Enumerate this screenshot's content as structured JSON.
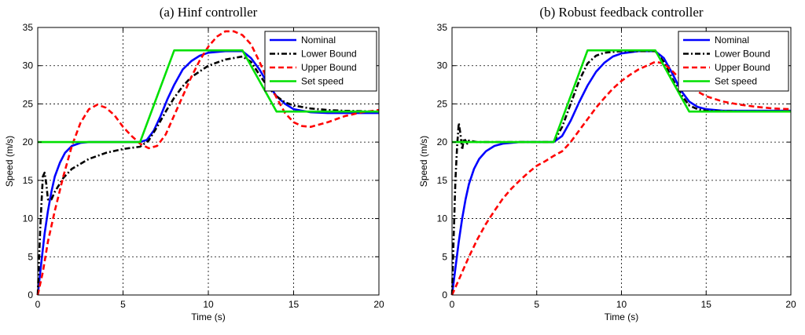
{
  "chart_data": [
    {
      "type": "line",
      "title": "(a) Hinf controller",
      "xlabel": "Time (s)",
      "ylabel": "Speed (m/s)",
      "xlim": [
        0,
        20
      ],
      "ylim": [
        0,
        35
      ],
      "xticks": [
        0,
        5,
        10,
        15,
        20
      ],
      "yticks": [
        0,
        5,
        10,
        15,
        20,
        25,
        30,
        35
      ],
      "grid": true,
      "legend_position": "top-right",
      "series": [
        {
          "name": "Nominal",
          "color": "#0000ff",
          "style": "solid",
          "points": [
            [
              0,
              0
            ],
            [
              0.2,
              4
            ],
            [
              0.4,
              8
            ],
            [
              0.6,
              11
            ],
            [
              0.8,
              13.5
            ],
            [
              1,
              15.5
            ],
            [
              1.3,
              17.3
            ],
            [
              1.6,
              18.6
            ],
            [
              2,
              19.5
            ],
            [
              2.5,
              19.9
            ],
            [
              3,
              20
            ],
            [
              4,
              20
            ],
            [
              5,
              20
            ],
            [
              5.5,
              20
            ],
            [
              6,
              20
            ],
            [
              6.4,
              20.3
            ],
            [
              6.8,
              21.5
            ],
            [
              7.2,
              23.4
            ],
            [
              7.6,
              25.6
            ],
            [
              8,
              27.5
            ],
            [
              8.5,
              29.5
            ],
            [
              9,
              30.6
            ],
            [
              9.5,
              31.3
            ],
            [
              10,
              31.7
            ],
            [
              11,
              31.9
            ],
            [
              12,
              31.9
            ],
            [
              12.5,
              31
            ],
            [
              13,
              29.5
            ],
            [
              13.5,
              27.6
            ],
            [
              14,
              26
            ],
            [
              14.5,
              25
            ],
            [
              15,
              24.3
            ],
            [
              16,
              23.9
            ],
            [
              17,
              23.8
            ],
            [
              18,
              23.8
            ],
            [
              19,
              23.8
            ],
            [
              20,
              23.8
            ]
          ]
        },
        {
          "name": "Lower Bound",
          "color": "#000000",
          "style": "dashdot",
          "points": [
            [
              0,
              0
            ],
            [
              0.15,
              9
            ],
            [
              0.3,
              15.5
            ],
            [
              0.4,
              16
            ],
            [
              0.5,
              14.5
            ],
            [
              0.6,
              12.5
            ],
            [
              0.8,
              12.5
            ],
            [
              1,
              13.5
            ],
            [
              1.5,
              15.3
            ],
            [
              2,
              16.5
            ],
            [
              3,
              17.8
            ],
            [
              4,
              18.6
            ],
            [
              5,
              19.1
            ],
            [
              6,
              19.4
            ],
            [
              6.5,
              20.2
            ],
            [
              7,
              22
            ],
            [
              7.5,
              24
            ],
            [
              8,
              25.8
            ],
            [
              8.5,
              27.3
            ],
            [
              9,
              28.5
            ],
            [
              10,
              30
            ],
            [
              11,
              30.8
            ],
            [
              12,
              31.2
            ],
            [
              12.5,
              30.5
            ],
            [
              13,
              28.8
            ],
            [
              13.5,
              27.2
            ],
            [
              14,
              26
            ],
            [
              14.5,
              25.2
            ],
            [
              15,
              24.8
            ],
            [
              16,
              24.4
            ],
            [
              17,
              24.2
            ],
            [
              18,
              24.1
            ],
            [
              20,
              24
            ]
          ]
        },
        {
          "name": "Upper Bound",
          "color": "#ff0000",
          "style": "dashed",
          "points": [
            [
              0,
              0
            ],
            [
              0.3,
              3
            ],
            [
              0.6,
              7
            ],
            [
              1,
              11
            ],
            [
              1.5,
              15.5
            ],
            [
              2,
              19.5
            ],
            [
              2.5,
              22.5
            ],
            [
              3,
              24.3
            ],
            [
              3.5,
              24.9
            ],
            [
              4,
              24.5
            ],
            [
              4.5,
              23.5
            ],
            [
              5,
              22
            ],
            [
              5.5,
              20.8
            ],
            [
              6,
              19.8
            ],
            [
              6.5,
              19.2
            ],
            [
              7,
              19.5
            ],
            [
              7.5,
              21
            ],
            [
              8,
              23.5
            ],
            [
              8.5,
              26
            ],
            [
              9,
              28.5
            ],
            [
              9.5,
              30.7
            ],
            [
              10,
              32.5
            ],
            [
              10.5,
              33.8
            ],
            [
              11,
              34.5
            ],
            [
              11.5,
              34.5
            ],
            [
              12,
              34
            ],
            [
              12.5,
              32.8
            ],
            [
              13,
              30.5
            ],
            [
              13.5,
              28
            ],
            [
              14,
              25.8
            ],
            [
              14.5,
              23.8
            ],
            [
              15,
              22.6
            ],
            [
              15.5,
              22.1
            ],
            [
              16,
              22
            ],
            [
              17,
              22.6
            ],
            [
              18,
              23.4
            ],
            [
              19,
              23.9
            ],
            [
              20,
              24.2
            ]
          ]
        },
        {
          "name": "Set speed",
          "color": "#00e000",
          "style": "solid",
          "points": [
            [
              0,
              20
            ],
            [
              6,
              20
            ],
            [
              8,
              32
            ],
            [
              12,
              32
            ],
            [
              14,
              24
            ],
            [
              20,
              24
            ]
          ]
        }
      ]
    },
    {
      "type": "line",
      "title": "(b) Robust feedback controller",
      "xlabel": "Time (s)",
      "ylabel": "Speed (m/s)",
      "xlim": [
        0,
        20
      ],
      "ylim": [
        0,
        35
      ],
      "xticks": [
        0,
        5,
        10,
        15,
        20
      ],
      "yticks": [
        0,
        5,
        10,
        15,
        20,
        25,
        30,
        35
      ],
      "grid": true,
      "legend_position": "top-right",
      "series": [
        {
          "name": "Nominal",
          "color": "#0000ff",
          "style": "solid",
          "points": [
            [
              0,
              0
            ],
            [
              0.2,
              3.5
            ],
            [
              0.4,
              7
            ],
            [
              0.6,
              10
            ],
            [
              0.8,
              12.5
            ],
            [
              1,
              14.5
            ],
            [
              1.3,
              16.5
            ],
            [
              1.6,
              17.8
            ],
            [
              2,
              18.8
            ],
            [
              2.5,
              19.5
            ],
            [
              3,
              19.8
            ],
            [
              4,
              20
            ],
            [
              5,
              20
            ],
            [
              6,
              20
            ],
            [
              6.5,
              20.8
            ],
            [
              7,
              22.8
            ],
            [
              7.5,
              25.2
            ],
            [
              8,
              27.4
            ],
            [
              8.5,
              29.2
            ],
            [
              9,
              30.4
            ],
            [
              9.5,
              31.2
            ],
            [
              10,
              31.6
            ],
            [
              11,
              31.9
            ],
            [
              12,
              31.9
            ],
            [
              12.5,
              31
            ],
            [
              13,
              29
            ],
            [
              13.5,
              26.8
            ],
            [
              14,
              25.3
            ],
            [
              14.5,
              24.6
            ],
            [
              15,
              24.3
            ],
            [
              16,
              24.1
            ],
            [
              18,
              24.1
            ],
            [
              20,
              24.1
            ]
          ]
        },
        {
          "name": "Lower Bound",
          "color": "#000000",
          "style": "dashdot",
          "points": [
            [
              0,
              0
            ],
            [
              0.1,
              8
            ],
            [
              0.2,
              15
            ],
            [
              0.3,
              19.5
            ],
            [
              0.4,
              22.5
            ],
            [
              0.5,
              21
            ],
            [
              0.6,
              19
            ],
            [
              0.7,
              20.5
            ],
            [
              0.8,
              20.2
            ],
            [
              0.9,
              19.8
            ],
            [
              1,
              20.2
            ],
            [
              1.5,
              20
            ],
            [
              2,
              20
            ],
            [
              5,
              20
            ],
            [
              6,
              20
            ],
            [
              6.5,
              22
            ],
            [
              7,
              25
            ],
            [
              7.5,
              28
            ],
            [
              8,
              30.3
            ],
            [
              8.5,
              31.3
            ],
            [
              9,
              31.7
            ],
            [
              10,
              31.9
            ],
            [
              12,
              31.9
            ],
            [
              12.5,
              30.5
            ],
            [
              13,
              28.3
            ],
            [
              13.5,
              26.3
            ],
            [
              14,
              24.8
            ],
            [
              14.5,
              24.3
            ],
            [
              15,
              24.1
            ],
            [
              17,
              24
            ],
            [
              20,
              24
            ]
          ]
        },
        {
          "name": "Upper Bound",
          "color": "#ff0000",
          "style": "dashed",
          "points": [
            [
              0,
              0
            ],
            [
              0.5,
              2.5
            ],
            [
              1,
              5
            ],
            [
              1.5,
              7.3
            ],
            [
              2,
              9.3
            ],
            [
              2.5,
              11
            ],
            [
              3,
              12.6
            ],
            [
              3.5,
              13.9
            ],
            [
              4,
              15
            ],
            [
              4.5,
              16
            ],
            [
              5,
              16.9
            ],
            [
              5.5,
              17.5
            ],
            [
              6,
              18.2
            ],
            [
              6.5,
              18.8
            ],
            [
              7,
              20
            ],
            [
              7.5,
              21.5
            ],
            [
              8,
              23
            ],
            [
              8.5,
              24.5
            ],
            [
              9,
              25.8
            ],
            [
              9.5,
              27
            ],
            [
              10,
              28
            ],
            [
              10.5,
              28.8
            ],
            [
              11,
              29.5
            ],
            [
              11.5,
              30
            ],
            [
              12,
              30.5
            ],
            [
              12.5,
              30.3
            ],
            [
              13,
              29.3
            ],
            [
              13.5,
              28.2
            ],
            [
              14,
              27.3
            ],
            [
              14.5,
              26.6
            ],
            [
              15,
              26
            ],
            [
              16,
              25.3
            ],
            [
              17,
              24.9
            ],
            [
              18,
              24.6
            ],
            [
              19,
              24.4
            ],
            [
              20,
              24.3
            ]
          ]
        },
        {
          "name": "Set speed",
          "color": "#00e000",
          "style": "solid",
          "points": [
            [
              0,
              20
            ],
            [
              6,
              20
            ],
            [
              8,
              32
            ],
            [
              12,
              32
            ],
            [
              14,
              24
            ],
            [
              20,
              24
            ]
          ]
        }
      ]
    }
  ]
}
